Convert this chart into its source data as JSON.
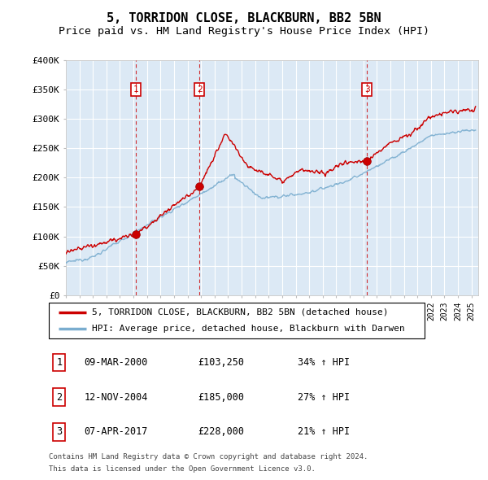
{
  "title": "5, TORRIDON CLOSE, BLACKBURN, BB2 5BN",
  "subtitle": "Price paid vs. HM Land Registry's House Price Index (HPI)",
  "title_fontsize": 11,
  "subtitle_fontsize": 9.5,
  "background_color": "#ffffff",
  "plot_bg_color": "#dce9f5",
  "grid_color": "#ffffff",
  "ylim": [
    0,
    400000
  ],
  "yticks": [
    0,
    50000,
    100000,
    150000,
    200000,
    250000,
    300000,
    350000,
    400000
  ],
  "ytick_labels": [
    "£0",
    "£50K",
    "£100K",
    "£150K",
    "£200K",
    "£250K",
    "£300K",
    "£350K",
    "£400K"
  ],
  "xlim_start": 1995.0,
  "xlim_end": 2025.5,
  "transactions": [
    {
      "date": "09-MAR-2000",
      "year": 2000.19,
      "price": 103250,
      "label": "1",
      "hpi_pct": "34%"
    },
    {
      "date": "12-NOV-2004",
      "year": 2004.87,
      "price": 185000,
      "label": "2",
      "hpi_pct": "27%"
    },
    {
      "date": "07-APR-2017",
      "year": 2017.27,
      "price": 228000,
      "label": "3",
      "hpi_pct": "21%"
    }
  ],
  "legend_line1": "5, TORRIDON CLOSE, BLACKBURN, BB2 5BN (detached house)",
  "legend_line2": "HPI: Average price, detached house, Blackburn with Darwen",
  "footer_line1": "Contains HM Land Registry data © Crown copyright and database right 2024.",
  "footer_line2": "This data is licensed under the Open Government Licence v3.0.",
  "red_line_color": "#cc0000",
  "blue_line_color": "#7aadcf",
  "marker_box_color": "#cc0000"
}
